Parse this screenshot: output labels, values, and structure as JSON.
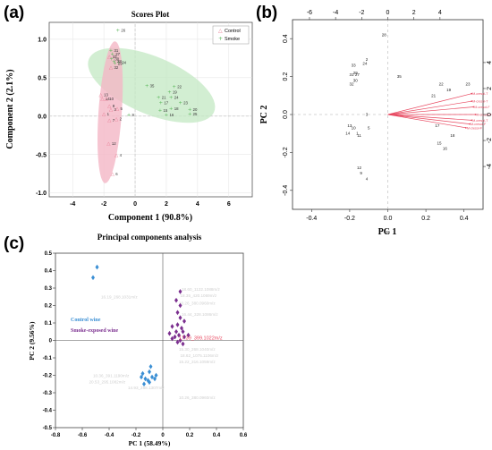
{
  "panels": {
    "a": "(a)",
    "b": "(b)",
    "c": "(c)"
  },
  "chart_data": [
    {
      "type": "scatter",
      "title": "Scores Plot",
      "xlabel": "Component 1 (90.8%)",
      "ylabel": "Component 2 (2.1%)",
      "xlim": [
        -5.5,
        7.5
      ],
      "ylim": [
        -1.05,
        1.22
      ],
      "xticks": [
        -4,
        -2,
        0,
        2,
        4,
        6
      ],
      "yticks": [
        -1.0,
        -0.5,
        0.0,
        0.5,
        1.0
      ],
      "legend": {
        "position": "top-right",
        "entries": [
          "Control",
          "Smoke"
        ]
      },
      "colors": {
        "control": "#e87890",
        "smoke": "#5cb85c",
        "control_ellipse": "#f4b6c6",
        "smoke_ellipse": "#c3e8c3"
      },
      "series": [
        {
          "name": "Control",
          "points": [
            {
              "label": "33",
              "x": -1.65,
              "y": 0.78
            },
            {
              "label": "32",
              "x": -1.55,
              "y": 0.64
            },
            {
              "label": "13",
              "x": -2.2,
              "y": 0.28
            },
            {
              "label": "14",
              "x": -2.1,
              "y": 0.23
            },
            {
              "label": "10",
              "x": -1.85,
              "y": 0.23
            },
            {
              "label": "8",
              "x": -1.65,
              "y": 0.14
            },
            {
              "label": "3",
              "x": -1.55,
              "y": 0.09
            },
            {
              "label": "5",
              "x": -1.15,
              "y": 0.1
            },
            {
              "label": "1",
              "x": -2.0,
              "y": 0.03
            },
            {
              "label": "2",
              "x": -1.2,
              "y": -0.03
            },
            {
              "label": "7",
              "x": -1.65,
              "y": -0.05
            },
            {
              "label": "12",
              "x": -1.7,
              "y": -0.35
            },
            {
              "label": "4",
              "x": -1.2,
              "y": -0.5
            },
            {
              "label": "6",
              "x": -1.45,
              "y": -0.75
            }
          ]
        },
        {
          "name": "Smoke",
          "points": [
            {
              "label": "26",
              "x": -1.1,
              "y": 1.12
            },
            {
              "label": "31",
              "x": -1.55,
              "y": 0.86
            },
            {
              "label": "27",
              "x": -1.45,
              "y": 0.81
            },
            {
              "label": "34",
              "x": -1.05,
              "y": 0.7
            },
            {
              "label": "30",
              "x": -1.5,
              "y": 0.75
            },
            {
              "label": "28",
              "x": -1.35,
              "y": 0.72
            },
            {
              "label": "29",
              "x": -1.3,
              "y": 0.69
            },
            {
              "label": "35",
              "x": 0.75,
              "y": 0.4
            },
            {
              "label": "22",
              "x": 2.5,
              "y": 0.39
            },
            {
              "label": "19",
              "x": 2.2,
              "y": 0.32
            },
            {
              "label": "24",
              "x": 2.3,
              "y": 0.25
            },
            {
              "label": "21",
              "x": 1.5,
              "y": 0.25
            },
            {
              "label": "17",
              "x": 1.65,
              "y": 0.18
            },
            {
              "label": "23",
              "x": 2.9,
              "y": 0.18
            },
            {
              "label": "15",
              "x": 1.6,
              "y": 0.08
            },
            {
              "label": "18",
              "x": 2.3,
              "y": 0.1
            },
            {
              "label": "20",
              "x": 3.5,
              "y": 0.09
            },
            {
              "label": "25",
              "x": 3.5,
              "y": 0.03
            },
            {
              "label": "16",
              "x": 2.0,
              "y": 0.02
            },
            {
              "label": "9",
              "x": -0.4,
              "y": 0.02
            }
          ]
        }
      ]
    },
    {
      "type": "scatter",
      "xlabel": "PC 1",
      "ylabel": "PC 2",
      "xlim": [
        -0.5,
        0.5
      ],
      "ylim": [
        -0.5,
        0.5
      ],
      "xticks": [
        -0.4,
        -0.2,
        0.0,
        0.2,
        0.4
      ],
      "yticks": [
        -0.4,
        -0.2,
        0.0,
        0.2,
        0.4
      ],
      "top_ticks": [
        -6,
        -4,
        -2,
        0,
        2,
        4
      ],
      "right_ticks": [
        4,
        2,
        0,
        -2,
        -4
      ],
      "colors": {
        "labels": "#222222",
        "arrows": "#e8475f"
      },
      "points": [
        {
          "label": "28",
          "x": -0.02,
          "y": 0.42
        },
        {
          "label": "2",
          "x": -0.11,
          "y": 0.29
        },
        {
          "label": "24",
          "x": -0.12,
          "y": 0.27
        },
        {
          "label": "33",
          "x": -0.18,
          "y": 0.26
        },
        {
          "label": "29",
          "x": -0.17,
          "y": 0.22
        },
        {
          "label": "31",
          "x": -0.19,
          "y": 0.21
        },
        {
          "label": "27",
          "x": -0.16,
          "y": 0.21
        },
        {
          "label": "30",
          "x": -0.17,
          "y": 0.18
        },
        {
          "label": "32",
          "x": -0.19,
          "y": 0.16
        },
        {
          "label": "35",
          "x": 0.06,
          "y": 0.2
        },
        {
          "label": "22",
          "x": 0.28,
          "y": 0.16
        },
        {
          "label": "23",
          "x": 0.42,
          "y": 0.16
        },
        {
          "label": "19",
          "x": 0.32,
          "y": 0.13
        },
        {
          "label": "21",
          "x": 0.24,
          "y": 0.1
        },
        {
          "label": "3",
          "x": -0.11,
          "y": 0.0
        },
        {
          "label": "5",
          "x": -0.1,
          "y": -0.07
        },
        {
          "label": "13",
          "x": -0.2,
          "y": -0.06
        },
        {
          "label": "10",
          "x": -0.18,
          "y": -0.07
        },
        {
          "label": "14",
          "x": -0.21,
          "y": -0.1
        },
        {
          "label": "1",
          "x": -0.16,
          "y": -0.1
        },
        {
          "label": "11",
          "x": -0.15,
          "y": -0.11
        },
        {
          "label": "17",
          "x": 0.26,
          "y": -0.06
        },
        {
          "label": "18",
          "x": 0.34,
          "y": -0.11
        },
        {
          "label": "15",
          "x": 0.27,
          "y": -0.15
        },
        {
          "label": "16",
          "x": 0.3,
          "y": -0.18
        },
        {
          "label": "12",
          "x": -0.15,
          "y": -0.28
        },
        {
          "label": "9",
          "x": -0.14,
          "y": -0.31
        },
        {
          "label": "4",
          "x": -0.11,
          "y": -0.34
        },
        {
          "label": "26",
          "x": 0.0,
          "y": -0.62
        }
      ],
      "loadings": [
        {
          "label": "M-cresol-T",
          "x": 0.44,
          "y": 0.11
        },
        {
          "label": "M-cresol-T",
          "x": 0.44,
          "y": 0.07
        },
        {
          "label": "M-cresol-F",
          "x": 0.45,
          "y": 0.04
        },
        {
          "label": "M-cresol-F",
          "x": 0.46,
          "y": 0.0
        },
        {
          "label": "M-cresol-T",
          "x": 0.44,
          "y": -0.03
        },
        {
          "label": "M-cresol-F",
          "x": 0.43,
          "y": -0.05
        },
        {
          "label": "M-cresol-F",
          "x": 0.41,
          "y": -0.07
        }
      ]
    },
    {
      "type": "scatter",
      "title": "Principal components analysis",
      "xlabel": "PC 1 (58.49%)",
      "ylabel": "PC 2 (9.56%)",
      "xlim": [
        -0.8,
        0.6
      ],
      "ylim": [
        -0.5,
        0.5
      ],
      "xticks": [
        -0.8,
        -0.6,
        -0.4,
        -0.2,
        0,
        0.2,
        0.4,
        0.6
      ],
      "yticks": [
        -0.5,
        -0.4,
        -0.3,
        -0.2,
        -0.1,
        0,
        0.1,
        0.2,
        0.3,
        0.4,
        0.5
      ],
      "legend": {
        "position": "left",
        "entries": [
          "Control wine",
          "Smoke-exposed wine"
        ]
      },
      "colors": {
        "control": "#3b8fd4",
        "smoke": "#7b2f8f",
        "highlight": "#e8475f",
        "faint": "#cfcfcf"
      },
      "highlight_label": {
        "text": "17.39_399.1022m/z",
        "x": 0.12,
        "y": 0.005
      },
      "faint_labels": [
        {
          "text": "16.19_268.1031m/z",
          "x": -0.46,
          "y": 0.24
        },
        {
          "text": "18.60_1122.1088m/z",
          "x": 0.14,
          "y": 0.285
        },
        {
          "text": "18.35_420.1069m/z",
          "x": 0.13,
          "y": 0.25
        },
        {
          "text": "10.26_380.0960m/z",
          "x": 0.12,
          "y": 0.205
        },
        {
          "text": "16.44_328.1086m/z",
          "x": 0.14,
          "y": 0.14
        },
        {
          "text": "15.30_268.1040m/z",
          "x": 0.12,
          "y": -0.06
        },
        {
          "text": "18.62_1075.1106m/z",
          "x": 0.13,
          "y": -0.095
        },
        {
          "text": "15.22_316.1059m/z",
          "x": 0.12,
          "y": -0.13
        },
        {
          "text": "10.36_391.1190m/z",
          "x": -0.52,
          "y": -0.21
        },
        {
          "text": "20.53_295.1082m/z",
          "x": -0.55,
          "y": -0.245
        },
        {
          "text": "14.93_288.1307m/z",
          "x": -0.26,
          "y": -0.28
        },
        {
          "text": "10.26_380.0960m/z",
          "x": 0.12,
          "y": -0.335
        }
      ],
      "series": [
        {
          "name": "Control wine",
          "points": [
            {
              "x": -0.49,
              "y": 0.42
            },
            {
              "x": -0.52,
              "y": 0.36
            },
            {
              "x": -0.15,
              "y": -0.19
            },
            {
              "x": -0.16,
              "y": -0.21
            },
            {
              "x": -0.1,
              "y": -0.18
            },
            {
              "x": -0.09,
              "y": -0.15
            },
            {
              "x": -0.13,
              "y": -0.22
            },
            {
              "x": -0.11,
              "y": -0.23
            },
            {
              "x": -0.08,
              "y": -0.21
            },
            {
              "x": -0.06,
              "y": -0.22
            },
            {
              "x": -0.05,
              "y": -0.2
            },
            {
              "x": -0.1,
              "y": -0.24
            },
            {
              "x": -0.14,
              "y": -0.25
            }
          ]
        },
        {
          "name": "Smoke-exposed wine",
          "points": [
            {
              "x": 0.13,
              "y": 0.28
            },
            {
              "x": 0.1,
              "y": 0.23
            },
            {
              "x": 0.13,
              "y": 0.2
            },
            {
              "x": 0.11,
              "y": 0.16
            },
            {
              "x": 0.13,
              "y": 0.13
            },
            {
              "x": 0.16,
              "y": 0.11
            },
            {
              "x": 0.11,
              "y": 0.09
            },
            {
              "x": 0.14,
              "y": 0.07
            },
            {
              "x": 0.07,
              "y": 0.08
            },
            {
              "x": 0.1,
              "y": 0.05
            },
            {
              "x": 0.15,
              "y": 0.05
            },
            {
              "x": 0.05,
              "y": 0.04
            },
            {
              "x": 0.12,
              "y": 0.03
            },
            {
              "x": 0.09,
              "y": 0.02
            },
            {
              "x": 0.16,
              "y": 0.02
            },
            {
              "x": 0.13,
              "y": 0.0
            },
            {
              "x": 0.07,
              "y": 0.01
            },
            {
              "x": 0.11,
              "y": -0.01
            },
            {
              "x": 0.15,
              "y": -0.02
            },
            {
              "x": 0.19,
              "y": 0.03
            }
          ]
        }
      ]
    }
  ]
}
